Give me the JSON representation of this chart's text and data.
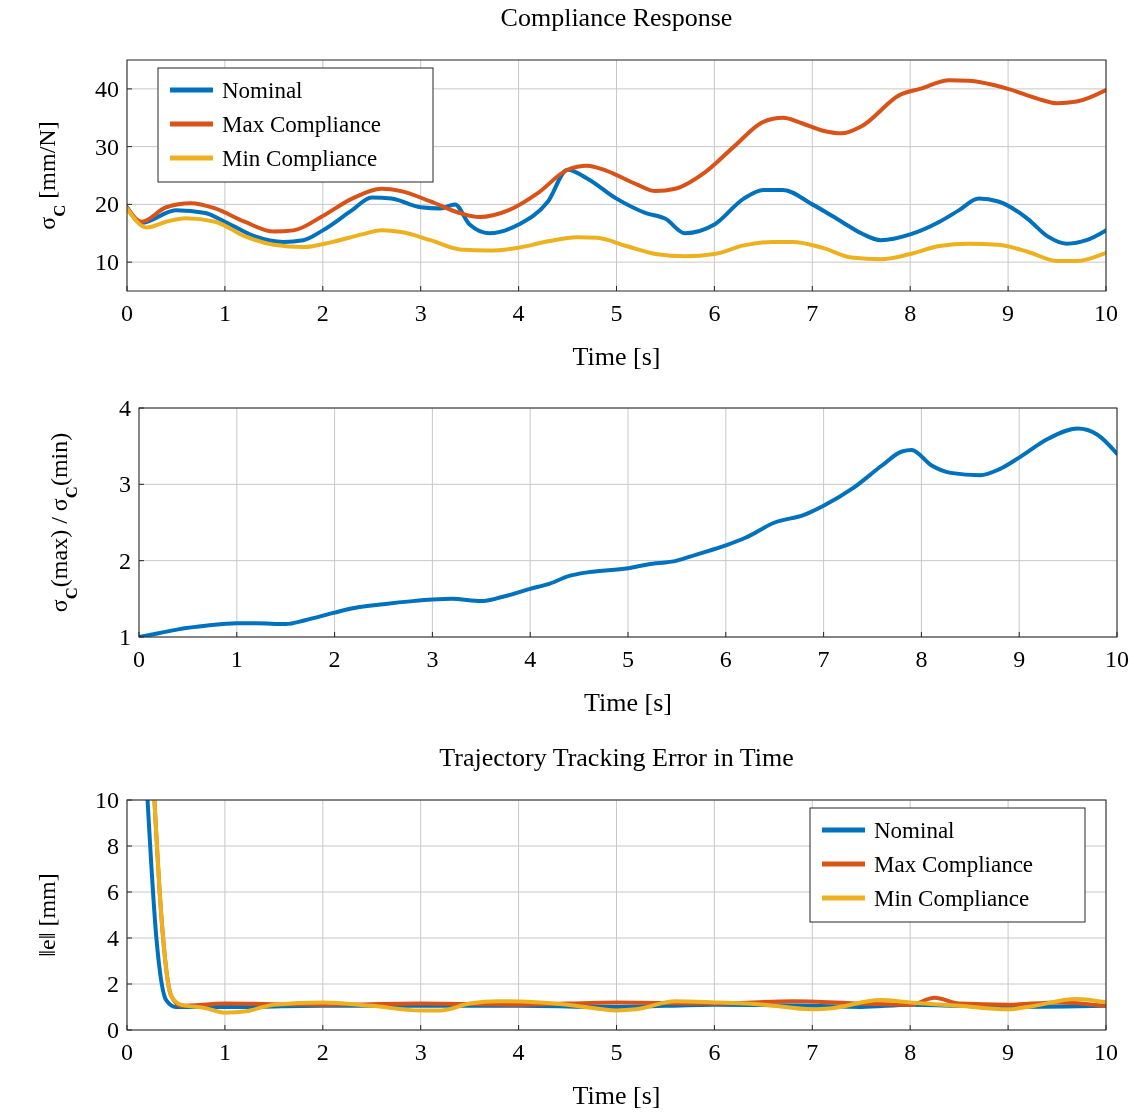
{
  "chart_data": [
    {
      "type": "line",
      "title": "Compliance Response",
      "xlabel": "Time [s]",
      "ylabel": "σ$_{C}$ [mm/N]",
      "xlim": [
        0,
        10
      ],
      "ylim": [
        5,
        45
      ],
      "xticks": [
        0,
        1,
        2,
        3,
        4,
        5,
        6,
        7,
        8,
        9,
        10
      ],
      "yticks": [
        10,
        20,
        30,
        40
      ],
      "grid": true,
      "legend": "top left",
      "series": [
        {
          "name": "Nominal",
          "color": "#0072bd",
          "x": [
            0,
            0.15,
            0.5,
            0.8,
            1,
            1.3,
            1.6,
            1.8,
            2,
            2.3,
            2.5,
            2.7,
            3,
            3.2,
            3.35,
            3.5,
            3.7,
            4,
            4.3,
            4.5,
            4.7,
            5,
            5.3,
            5.5,
            5.7,
            6,
            6.3,
            6.5,
            6.7,
            7,
            7.3,
            7.5,
            7.7,
            8,
            8.3,
            8.5,
            8.7,
            8.9,
            9.2,
            9.4,
            9.6,
            9.8,
            10
          ],
          "values": [
            19.5,
            16.8,
            19,
            18.5,
            17,
            14.5,
            13.5,
            13.8,
            15.5,
            19,
            21.2,
            21,
            19.5,
            19.3,
            20,
            16.5,
            15,
            16.5,
            20.5,
            26,
            24.5,
            21,
            18.5,
            17.5,
            15,
            16.5,
            21,
            22.5,
            22.5,
            20,
            17,
            15,
            13.8,
            14.8,
            17,
            19,
            21,
            20.5,
            17.5,
            14.5,
            13.2,
            13.8,
            15.5
          ]
        },
        {
          "name": "Max Compliance",
          "color": "#d95319",
          "x": [
            0,
            0.15,
            0.4,
            0.65,
            0.9,
            1.2,
            1.5,
            1.7,
            2,
            2.3,
            2.6,
            2.8,
            3.1,
            3.4,
            3.6,
            3.9,
            4.2,
            4.5,
            4.7,
            4.9,
            5.2,
            5.4,
            5.6,
            5.9,
            6.2,
            6.5,
            6.7,
            6.9,
            7.1,
            7.3,
            7.5,
            7.9,
            8.1,
            8.4,
            8.6,
            9,
            9.3,
            9.5,
            9.7,
            10
          ],
          "values": [
            19.5,
            17,
            19.5,
            20.2,
            19.3,
            17,
            15.3,
            15.5,
            18,
            21,
            22.7,
            22.3,
            20.5,
            18.5,
            17.8,
            19,
            22,
            26,
            26.7,
            25.8,
            23.5,
            22.3,
            22.7,
            25.5,
            30,
            34.3,
            35,
            34,
            32.8,
            32.3,
            33.5,
            39,
            40,
            41.5,
            41.4,
            40,
            38.3,
            37.5,
            37.8,
            39.8
          ]
        },
        {
          "name": "Min Compliance",
          "color": "#edb120",
          "x": [
            0,
            0.2,
            0.4,
            0.6,
            0.9,
            1.2,
            1.5,
            1.8,
            2.1,
            2.4,
            2.6,
            2.8,
            3.1,
            3.4,
            3.7,
            4,
            4.3,
            4.6,
            4.8,
            5.1,
            5.4,
            5.7,
            6,
            6.3,
            6.6,
            6.8,
            7.1,
            7.4,
            7.7,
            8,
            8.3,
            8.6,
            8.9,
            9.2,
            9.5,
            9.7,
            10
          ],
          "values": [
            19.3,
            16,
            17,
            17.6,
            17,
            14.5,
            13,
            12.6,
            13.5,
            14.8,
            15.5,
            15.2,
            13.8,
            12.2,
            12,
            12.5,
            13.6,
            14.3,
            14.2,
            12.8,
            11.4,
            11,
            11.4,
            12.9,
            13.5,
            13.5,
            12.5,
            10.8,
            10.5,
            11.4,
            12.8,
            13.2,
            13,
            11.8,
            10.2,
            10.2,
            11.6
          ]
        }
      ]
    },
    {
      "type": "line",
      "xlabel": "Time [s]",
      "ylabel": "σ$_{C}$(max) / σ$_{C}$(min)",
      "xlim": [
        0,
        10
      ],
      "ylim": [
        1,
        4
      ],
      "xticks": [
        0,
        1,
        2,
        3,
        4,
        5,
        6,
        7,
        8,
        9,
        10
      ],
      "yticks": [
        1,
        2,
        3,
        4
      ],
      "grid": true,
      "series": [
        {
          "color": "#0072bd",
          "x": [
            0,
            0.2,
            0.4,
            0.7,
            1,
            1.2,
            1.5,
            1.7,
            2,
            2.2,
            2.5,
            2.8,
            3,
            3.2,
            3.5,
            3.7,
            4,
            4.2,
            4.4,
            4.6,
            5,
            5.2,
            5.5,
            5.7,
            6,
            6.2,
            6.5,
            6.8,
            7,
            7.3,
            7.6,
            7.8,
            7.9,
            8.1,
            8.3,
            8.6,
            8.8,
            9,
            9.3,
            9.6,
            9.8,
            10
          ],
          "values": [
            1,
            1.05,
            1.1,
            1.15,
            1.18,
            1.18,
            1.17,
            1.22,
            1.32,
            1.38,
            1.43,
            1.47,
            1.49,
            1.5,
            1.47,
            1.52,
            1.63,
            1.7,
            1.8,
            1.85,
            1.9,
            1.95,
            2,
            2.08,
            2.2,
            2.3,
            2.5,
            2.6,
            2.72,
            2.95,
            3.25,
            3.43,
            3.45,
            3.25,
            3.15,
            3.12,
            3.2,
            3.35,
            3.6,
            3.73,
            3.65,
            3.4
          ]
        }
      ]
    },
    {
      "type": "line",
      "title": "Trajectory Tracking Error in Time",
      "xlabel": "Time [s]",
      "ylabel": "‖e‖ [mm]",
      "xlim": [
        0,
        10
      ],
      "ylim": [
        0,
        10
      ],
      "xticks": [
        0,
        1,
        2,
        3,
        4,
        5,
        6,
        7,
        8,
        9,
        10
      ],
      "yticks": [
        0,
        2,
        4,
        6,
        8,
        10
      ],
      "grid": true,
      "legend": "top right",
      "series": [
        {
          "name": "Nominal",
          "color": "#0072bd",
          "x": [
            0.21,
            0.3,
            0.4,
            0.5,
            1,
            2,
            3,
            4,
            5,
            6,
            7,
            7.5,
            8,
            9,
            10
          ],
          "values": [
            10,
            4,
            1.3,
            1,
            1,
            1.05,
            1.05,
            1.05,
            1,
            1.1,
            1.05,
            1,
            1.1,
            1,
            1.05
          ]
        },
        {
          "name": "Max Compliance",
          "color": "#d95319",
          "x": [
            0.28,
            0.35,
            0.45,
            0.55,
            1,
            2,
            3,
            4,
            5,
            6,
            6.8,
            7.5,
            8,
            8.25,
            8.5,
            9,
            9.5,
            10
          ],
          "values": [
            10,
            5,
            1.5,
            1.05,
            1.15,
            1.1,
            1.15,
            1.1,
            1.2,
            1.15,
            1.25,
            1.15,
            1.1,
            1.4,
            1.15,
            1.1,
            1.2,
            1.05
          ]
        },
        {
          "name": "Min Compliance",
          "color": "#edb120",
          "x": [
            0.28,
            0.35,
            0.45,
            0.55,
            0.8,
            1,
            1.2,
            1.5,
            2,
            2.5,
            3,
            3.2,
            3.5,
            3.8,
            4.5,
            5,
            5.2,
            5.6,
            6,
            6.5,
            7,
            7.2,
            7.7,
            8,
            8.5,
            9,
            9.2,
            9.7,
            10
          ],
          "values": [
            10,
            5,
            1.5,
            1.1,
            0.95,
            0.75,
            0.8,
            1.1,
            1.2,
            1.05,
            0.85,
            0.85,
            1.15,
            1.25,
            1.1,
            0.85,
            0.9,
            1.25,
            1.2,
            1.1,
            0.9,
            0.95,
            1.3,
            1.2,
            1.05,
            0.9,
            1,
            1.35,
            1.2
          ]
        }
      ]
    }
  ]
}
